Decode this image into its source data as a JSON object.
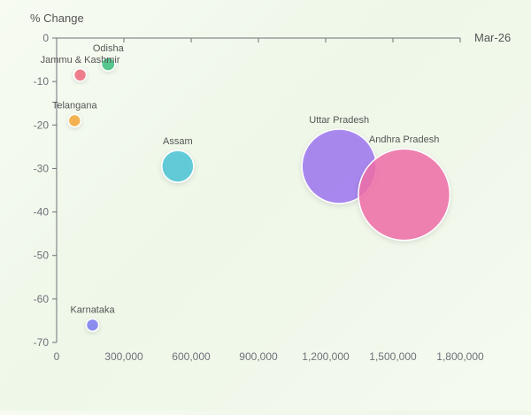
{
  "chart_data": {
    "type": "scatter",
    "title": "",
    "xlabel": "Mar-26",
    "ylabel": "% Change",
    "xlim": [
      0,
      1800000
    ],
    "ylim": [
      -70,
      0
    ],
    "x_ticks": [
      0,
      300000,
      600000,
      900000,
      1200000,
      1500000,
      1800000
    ],
    "x_tick_labels": [
      "0",
      "300,000",
      "600,000",
      "900,000",
      "1,200,000",
      "1,500,000",
      "1,800,000"
    ],
    "y_ticks": [
      0,
      -10,
      -20,
      -30,
      -40,
      -50,
      -60,
      -70
    ],
    "y_tick_labels": [
      "0",
      "-10",
      "-20",
      "-30",
      "-40",
      "-50",
      "-60",
      "-70"
    ],
    "grid": false,
    "legend": "none",
    "size_encoding": "bubble size proportional to x value",
    "points": [
      {
        "label": "Odisha",
        "x": 230000,
        "y": -6,
        "color": "#3fbf7f"
      },
      {
        "label": "Jammu & Kashmir",
        "x": 105000,
        "y": -8.5,
        "color": "#ef6b7e"
      },
      {
        "label": "Telangana",
        "x": 80000,
        "y": -19,
        "color": "#f4a93b"
      },
      {
        "label": "Assam",
        "x": 540000,
        "y": -29.5,
        "color": "#4cc3d6"
      },
      {
        "label": "Uttar Pradesh",
        "x": 1260000,
        "y": -29.5,
        "color": "#9f77f0"
      },
      {
        "label": "Andhra Pradesh",
        "x": 1550000,
        "y": -36,
        "color": "#ee6ea7"
      },
      {
        "label": "Karnataka",
        "x": 160000,
        "y": -66,
        "color": "#7b7ef1"
      }
    ]
  }
}
